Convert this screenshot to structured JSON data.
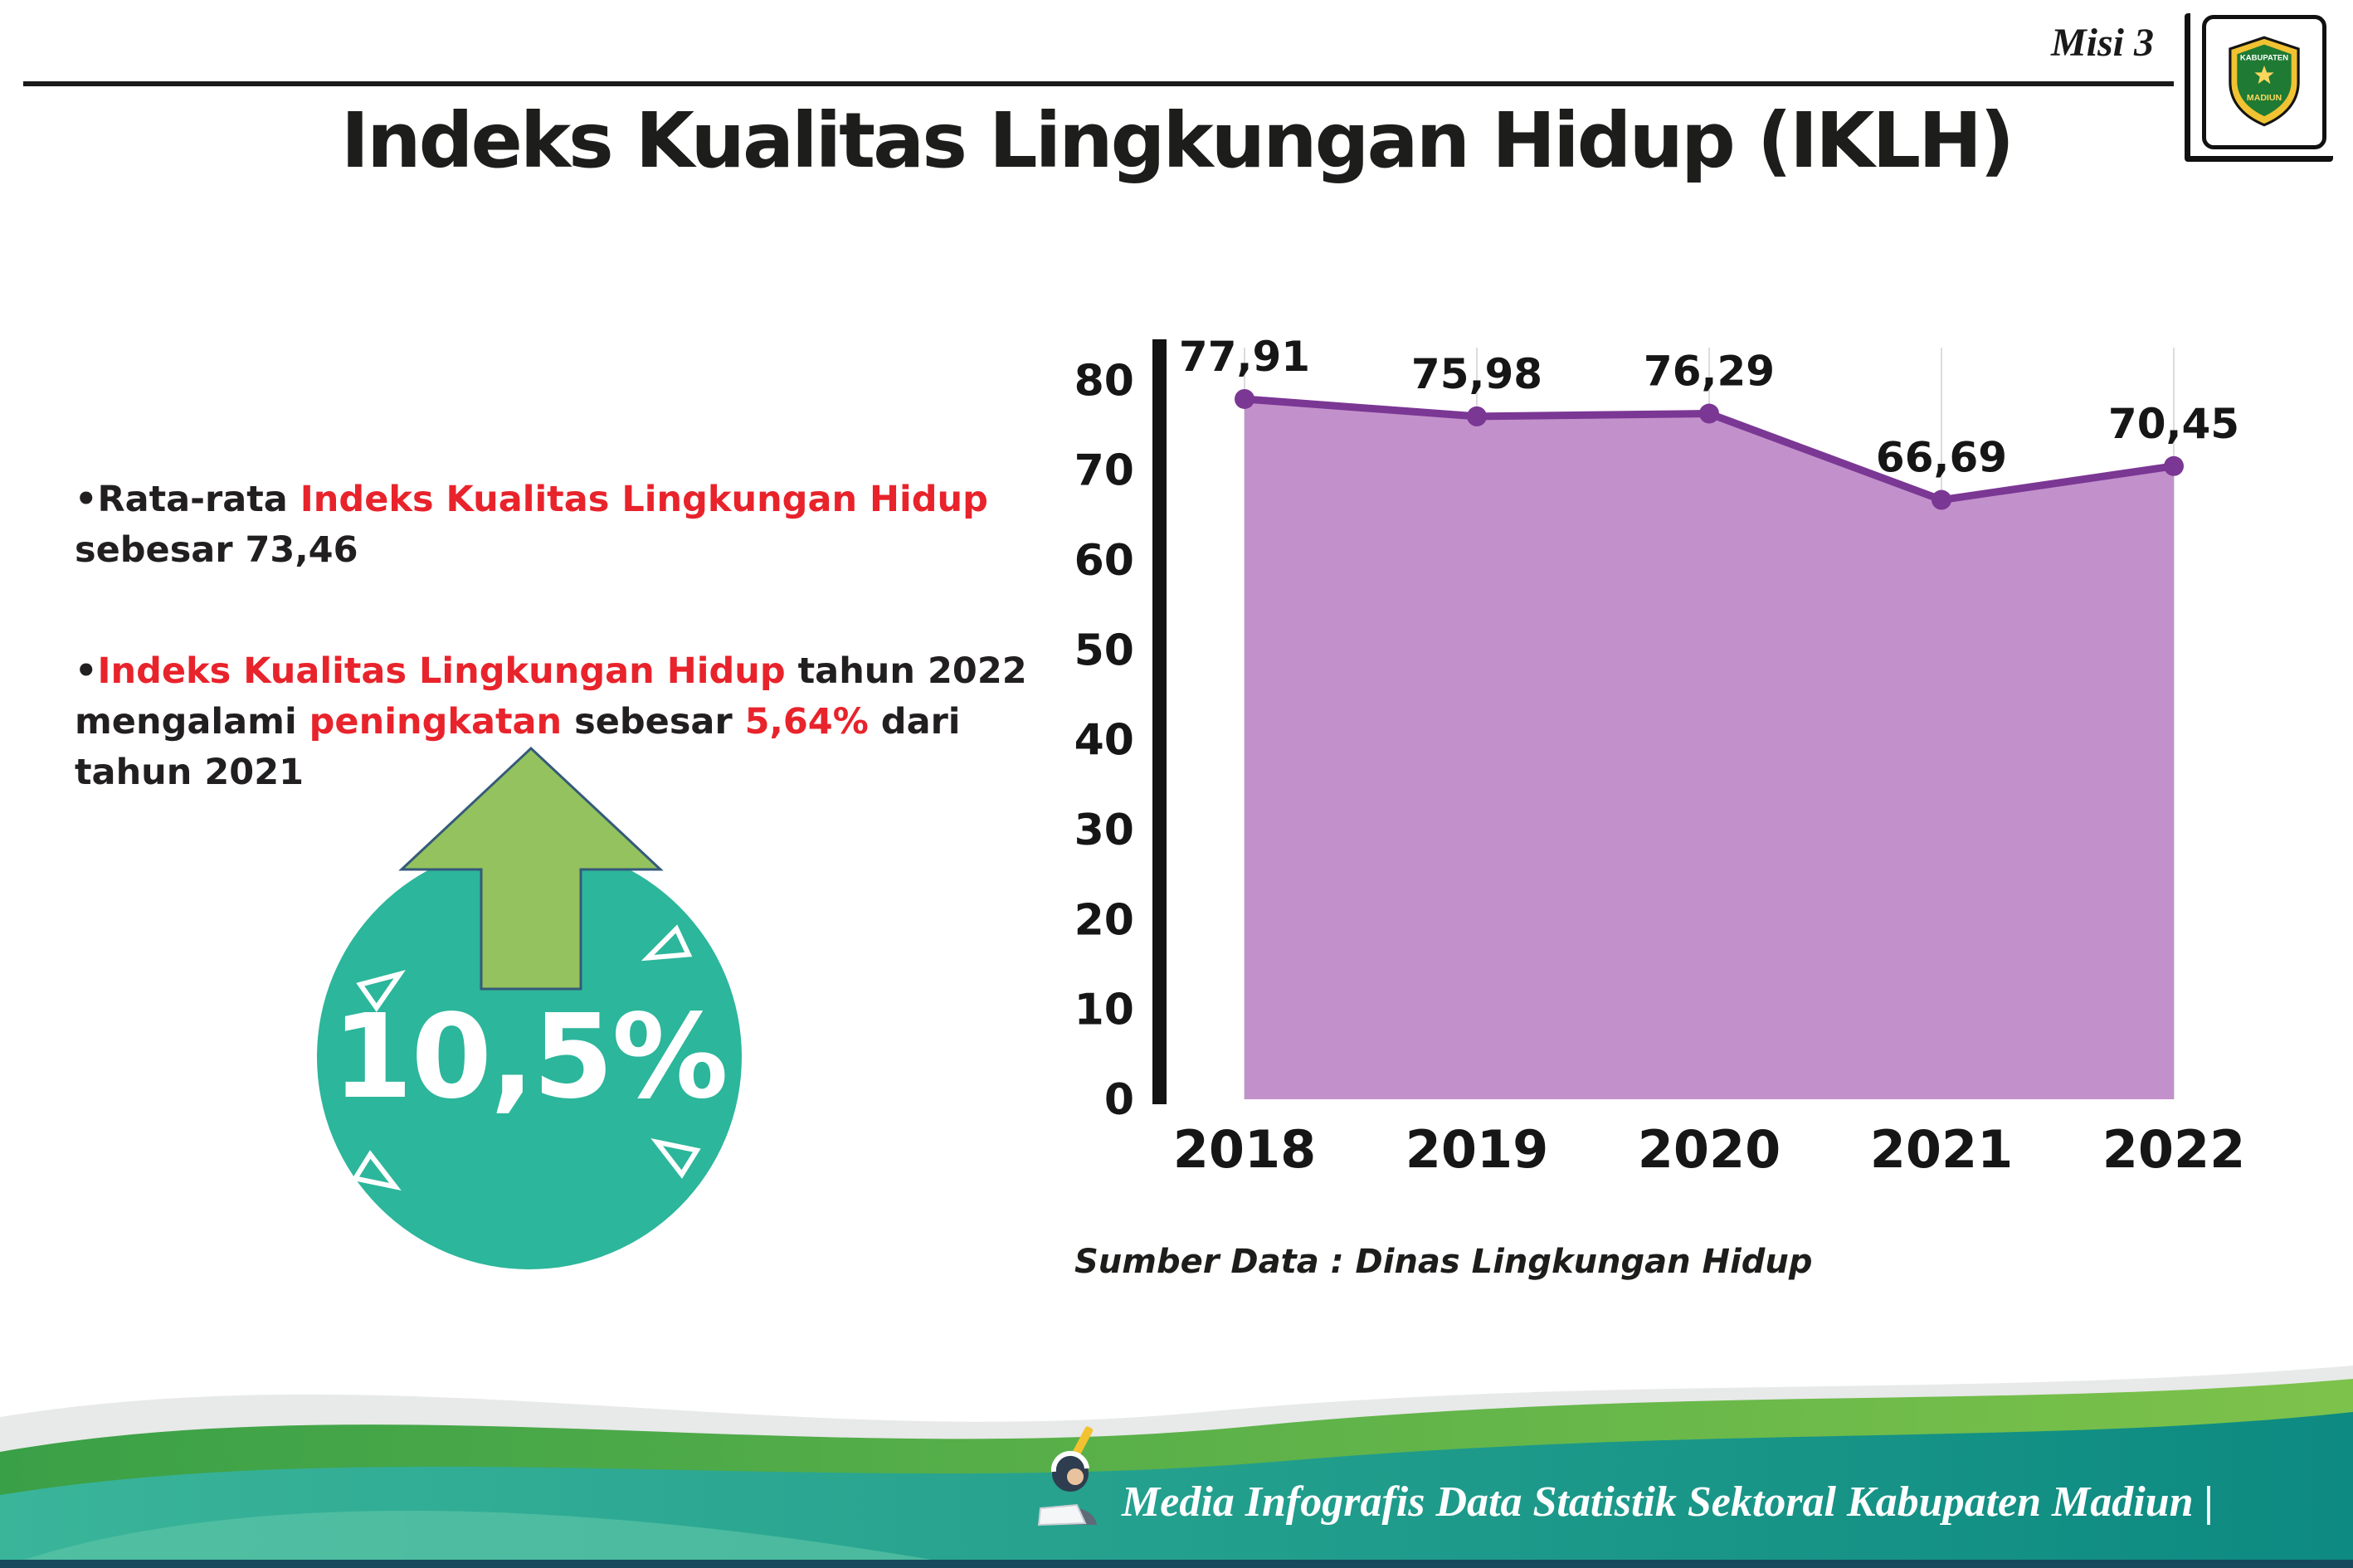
{
  "header": {
    "misi": "Misi 3",
    "logo": {
      "top": "KABUPATEN",
      "bottom": "MADIUN"
    }
  },
  "title": "Indeks Kualitas Lingkungan Hidup (IKLH)",
  "colors": {
    "accent_red": "#e8232b",
    "teal": "#2cb69b",
    "arrow_green": "#94c25e",
    "chart_fill": "#c291cb",
    "chart_line": "#7b3794"
  },
  "bullets": {
    "b1": {
      "s1": "•Rata-rata ",
      "s2": "Indeks Kualitas Lingkungan Hidup",
      "s3": "sebesar 73,46"
    },
    "b2": {
      "s1": "•",
      "s2": "Indeks Kualitas Lingkungan Hidup",
      "s3": " tahun 2022",
      "s4": "mengalami ",
      "s5": "peningkatan",
      "s6": " sebesar ",
      "s7": "5,64%",
      "s8": " dari",
      "s9": "tahun 2021"
    }
  },
  "badge": {
    "value": "10,5%",
    "icon": "arrow-up-icon"
  },
  "chart_data": {
    "type": "area",
    "title": "",
    "categories": [
      "2018",
      "2019",
      "2020",
      "2021",
      "2022"
    ],
    "values": [
      77.91,
      75.98,
      76.29,
      66.69,
      70.45
    ],
    "point_labels": [
      "77,91",
      "75,98",
      "76,29",
      "66,69",
      "70,45"
    ],
    "xlabel": "",
    "ylabel": "",
    "ylim": [
      0,
      80
    ],
    "yticks": [
      0,
      10,
      20,
      30,
      40,
      50,
      60,
      70,
      80
    ],
    "grid": "vertical-light",
    "legend": false,
    "fill_color": "#c291cb",
    "line_color": "#7b3794",
    "source": "Sumber Data : Dinas Lingkungan Hidup"
  },
  "footer": {
    "text": "Media Infografis Data Statistik Sektoral Kabupaten Madiun |"
  }
}
